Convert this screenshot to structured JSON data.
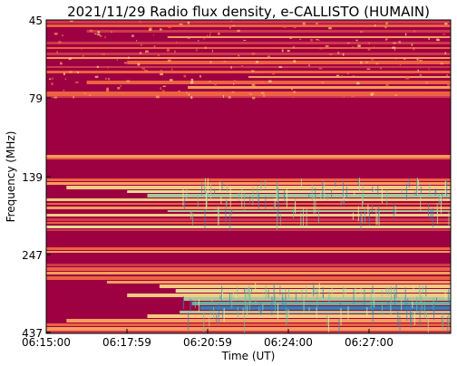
{
  "chart_data": {
    "type": "heatmap",
    "title": "2021/11/29  Radio flux density, e-CALLISTO (HUMAIN)",
    "xlabel": "Time (UT)",
    "ylabel": "Frequency (MHz)",
    "x_ticks": [
      "06:15:00",
      "06:17:59",
      "06:20:59",
      "06:24:00",
      "06:27:00"
    ],
    "y_ticks": [
      "45",
      "79",
      "139",
      "247",
      "437"
    ],
    "colormap": "Spectral",
    "colors": {
      "deep": "#9e0142",
      "red": "#d53e4f",
      "orange": "#f46d43",
      "light_orange": "#fdae61",
      "yellow": "#fee08b",
      "pale": "#e6f598",
      "green": "#abdda4",
      "teal": "#66c2a5",
      "blue": "#3288bd"
    }
  }
}
